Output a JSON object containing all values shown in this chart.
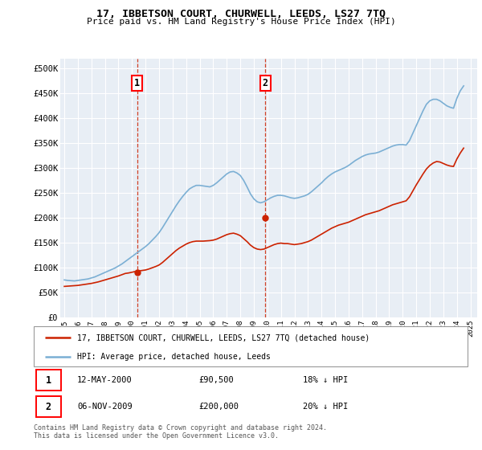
{
  "title": "17, IBBETSON COURT, CHURWELL, LEEDS, LS27 7TQ",
  "subtitle": "Price paid vs. HM Land Registry's House Price Index (HPI)",
  "ylabel_ticks": [
    "£0",
    "£50K",
    "£100K",
    "£150K",
    "£200K",
    "£250K",
    "£300K",
    "£350K",
    "£400K",
    "£450K",
    "£500K"
  ],
  "ytick_values": [
    0,
    50000,
    100000,
    150000,
    200000,
    250000,
    300000,
    350000,
    400000,
    450000,
    500000
  ],
  "ylim": [
    0,
    520000
  ],
  "xlim_start": 1994.7,
  "xlim_end": 2025.5,
  "xticks": [
    1995,
    1996,
    1997,
    1998,
    1999,
    2000,
    2001,
    2002,
    2003,
    2004,
    2005,
    2006,
    2007,
    2008,
    2009,
    2010,
    2011,
    2012,
    2013,
    2014,
    2015,
    2016,
    2017,
    2018,
    2019,
    2020,
    2021,
    2022,
    2023,
    2024,
    2025
  ],
  "bg_color": "#e8eef5",
  "grid_color": "#ffffff",
  "hpi_color": "#7bafd4",
  "price_color": "#cc2200",
  "transaction1": {
    "date": "12-MAY-2000",
    "price": 90500,
    "label": "1",
    "x": 2000.37,
    "hpi_pct": "18% ↓ HPI"
  },
  "transaction2": {
    "date": "06-NOV-2009",
    "price": 200000,
    "label": "2",
    "x": 2009.85,
    "hpi_pct": "20% ↓ HPI"
  },
  "legend_line1": "17, IBBETSON COURT, CHURWELL, LEEDS, LS27 7TQ (detached house)",
  "legend_line2": "HPI: Average price, detached house, Leeds",
  "footer": "Contains HM Land Registry data © Crown copyright and database right 2024.\nThis data is licensed under the Open Government Licence v3.0.",
  "hpi_data_x": [
    1995.0,
    1995.25,
    1995.5,
    1995.75,
    1996.0,
    1996.25,
    1996.5,
    1996.75,
    1997.0,
    1997.25,
    1997.5,
    1997.75,
    1998.0,
    1998.25,
    1998.5,
    1998.75,
    1999.0,
    1999.25,
    1999.5,
    1999.75,
    2000.0,
    2000.25,
    2000.5,
    2000.75,
    2001.0,
    2001.25,
    2001.5,
    2001.75,
    2002.0,
    2002.25,
    2002.5,
    2002.75,
    2003.0,
    2003.25,
    2003.5,
    2003.75,
    2004.0,
    2004.25,
    2004.5,
    2004.75,
    2005.0,
    2005.25,
    2005.5,
    2005.75,
    2006.0,
    2006.25,
    2006.5,
    2006.75,
    2007.0,
    2007.25,
    2007.5,
    2007.75,
    2008.0,
    2008.25,
    2008.5,
    2008.75,
    2009.0,
    2009.25,
    2009.5,
    2009.75,
    2010.0,
    2010.25,
    2010.5,
    2010.75,
    2011.0,
    2011.25,
    2011.5,
    2011.75,
    2012.0,
    2012.25,
    2012.5,
    2012.75,
    2013.0,
    2013.25,
    2013.5,
    2013.75,
    2014.0,
    2014.25,
    2014.5,
    2014.75,
    2015.0,
    2015.25,
    2015.5,
    2015.75,
    2016.0,
    2016.25,
    2016.5,
    2016.75,
    2017.0,
    2017.25,
    2017.5,
    2017.75,
    2018.0,
    2018.25,
    2018.5,
    2018.75,
    2019.0,
    2019.25,
    2019.5,
    2019.75,
    2020.0,
    2020.25,
    2020.5,
    2020.75,
    2021.0,
    2021.25,
    2021.5,
    2021.75,
    2022.0,
    2022.25,
    2022.5,
    2022.75,
    2023.0,
    2023.25,
    2023.5,
    2023.75,
    2024.0,
    2024.25,
    2024.5
  ],
  "hpi_data_y": [
    75000,
    74000,
    73500,
    73000,
    74000,
    75000,
    76000,
    77000,
    79000,
    81000,
    84000,
    87000,
    90000,
    93000,
    96000,
    99000,
    103000,
    107000,
    112000,
    117000,
    122000,
    127000,
    132000,
    137000,
    142000,
    148000,
    155000,
    162000,
    170000,
    180000,
    191000,
    202000,
    213000,
    224000,
    234000,
    243000,
    251000,
    258000,
    262000,
    265000,
    265000,
    264000,
    263000,
    262000,
    265000,
    270000,
    276000,
    282000,
    288000,
    292000,
    293000,
    290000,
    285000,
    275000,
    262000,
    248000,
    238000,
    232000,
    230000,
    232000,
    236000,
    240000,
    243000,
    245000,
    245000,
    244000,
    242000,
    240000,
    239000,
    240000,
    242000,
    244000,
    247000,
    252000,
    258000,
    264000,
    270000,
    277000,
    283000,
    288000,
    292000,
    295000,
    298000,
    301000,
    305000,
    310000,
    315000,
    319000,
    323000,
    326000,
    328000,
    329000,
    330000,
    332000,
    335000,
    338000,
    341000,
    344000,
    346000,
    347000,
    347000,
    346000,
    355000,
    370000,
    385000,
    400000,
    415000,
    428000,
    435000,
    438000,
    438000,
    435000,
    430000,
    425000,
    422000,
    420000,
    440000,
    455000,
    465000
  ],
  "price_data_x": [
    1995.0,
    1995.25,
    1995.5,
    1995.75,
    1996.0,
    1996.25,
    1996.5,
    1996.75,
    1997.0,
    1997.25,
    1997.5,
    1997.75,
    1998.0,
    1998.25,
    1998.5,
    1998.75,
    1999.0,
    1999.25,
    1999.5,
    1999.75,
    2000.0,
    2000.25,
    2000.5,
    2000.75,
    2001.0,
    2001.25,
    2001.5,
    2001.75,
    2002.0,
    2002.25,
    2002.5,
    2002.75,
    2003.0,
    2003.25,
    2003.5,
    2003.75,
    2004.0,
    2004.25,
    2004.5,
    2004.75,
    2005.0,
    2005.25,
    2005.5,
    2005.75,
    2006.0,
    2006.25,
    2006.5,
    2006.75,
    2007.0,
    2007.25,
    2007.5,
    2007.75,
    2008.0,
    2008.25,
    2008.5,
    2008.75,
    2009.0,
    2009.25,
    2009.5,
    2009.75,
    2010.0,
    2010.25,
    2010.5,
    2010.75,
    2011.0,
    2011.25,
    2011.5,
    2011.75,
    2012.0,
    2012.25,
    2012.5,
    2012.75,
    2013.0,
    2013.25,
    2013.5,
    2013.75,
    2014.0,
    2014.25,
    2014.5,
    2014.75,
    2015.0,
    2015.25,
    2015.5,
    2015.75,
    2016.0,
    2016.25,
    2016.5,
    2016.75,
    2017.0,
    2017.25,
    2017.5,
    2017.75,
    2018.0,
    2018.25,
    2018.5,
    2018.75,
    2019.0,
    2019.25,
    2019.5,
    2019.75,
    2020.0,
    2020.25,
    2020.5,
    2020.75,
    2021.0,
    2021.25,
    2021.5,
    2021.75,
    2022.0,
    2022.25,
    2022.5,
    2022.75,
    2023.0,
    2023.25,
    2023.5,
    2023.75,
    2024.0,
    2024.25,
    2024.5
  ],
  "price_data_y": [
    62000,
    62500,
    63000,
    63500,
    64000,
    65000,
    66000,
    67000,
    68000,
    69500,
    71000,
    73000,
    75000,
    77000,
    79000,
    81000,
    83000,
    85500,
    88000,
    89000,
    90500,
    92000,
    93000,
    94000,
    95000,
    97000,
    99500,
    102000,
    105000,
    110000,
    116000,
    122000,
    128000,
    134000,
    139000,
    143000,
    147000,
    150000,
    152000,
    153000,
    153000,
    153000,
    153500,
    154000,
    155000,
    157000,
    160000,
    163000,
    166000,
    168000,
    169000,
    167000,
    164000,
    158000,
    152000,
    145000,
    140000,
    137000,
    136000,
    137000,
    140000,
    143000,
    146000,
    148000,
    149000,
    148000,
    148000,
    147000,
    146000,
    147000,
    148000,
    150000,
    152000,
    155000,
    159000,
    163000,
    167000,
    171000,
    175000,
    179000,
    182000,
    185000,
    187000,
    189000,
    191000,
    194000,
    197000,
    200000,
    203000,
    206000,
    208000,
    210000,
    212000,
    214000,
    217000,
    220000,
    223000,
    226000,
    228000,
    230000,
    232000,
    234000,
    242000,
    254000,
    266000,
    277000,
    288000,
    298000,
    305000,
    310000,
    313000,
    312000,
    309000,
    306000,
    304000,
    303000,
    318000,
    330000,
    340000
  ]
}
